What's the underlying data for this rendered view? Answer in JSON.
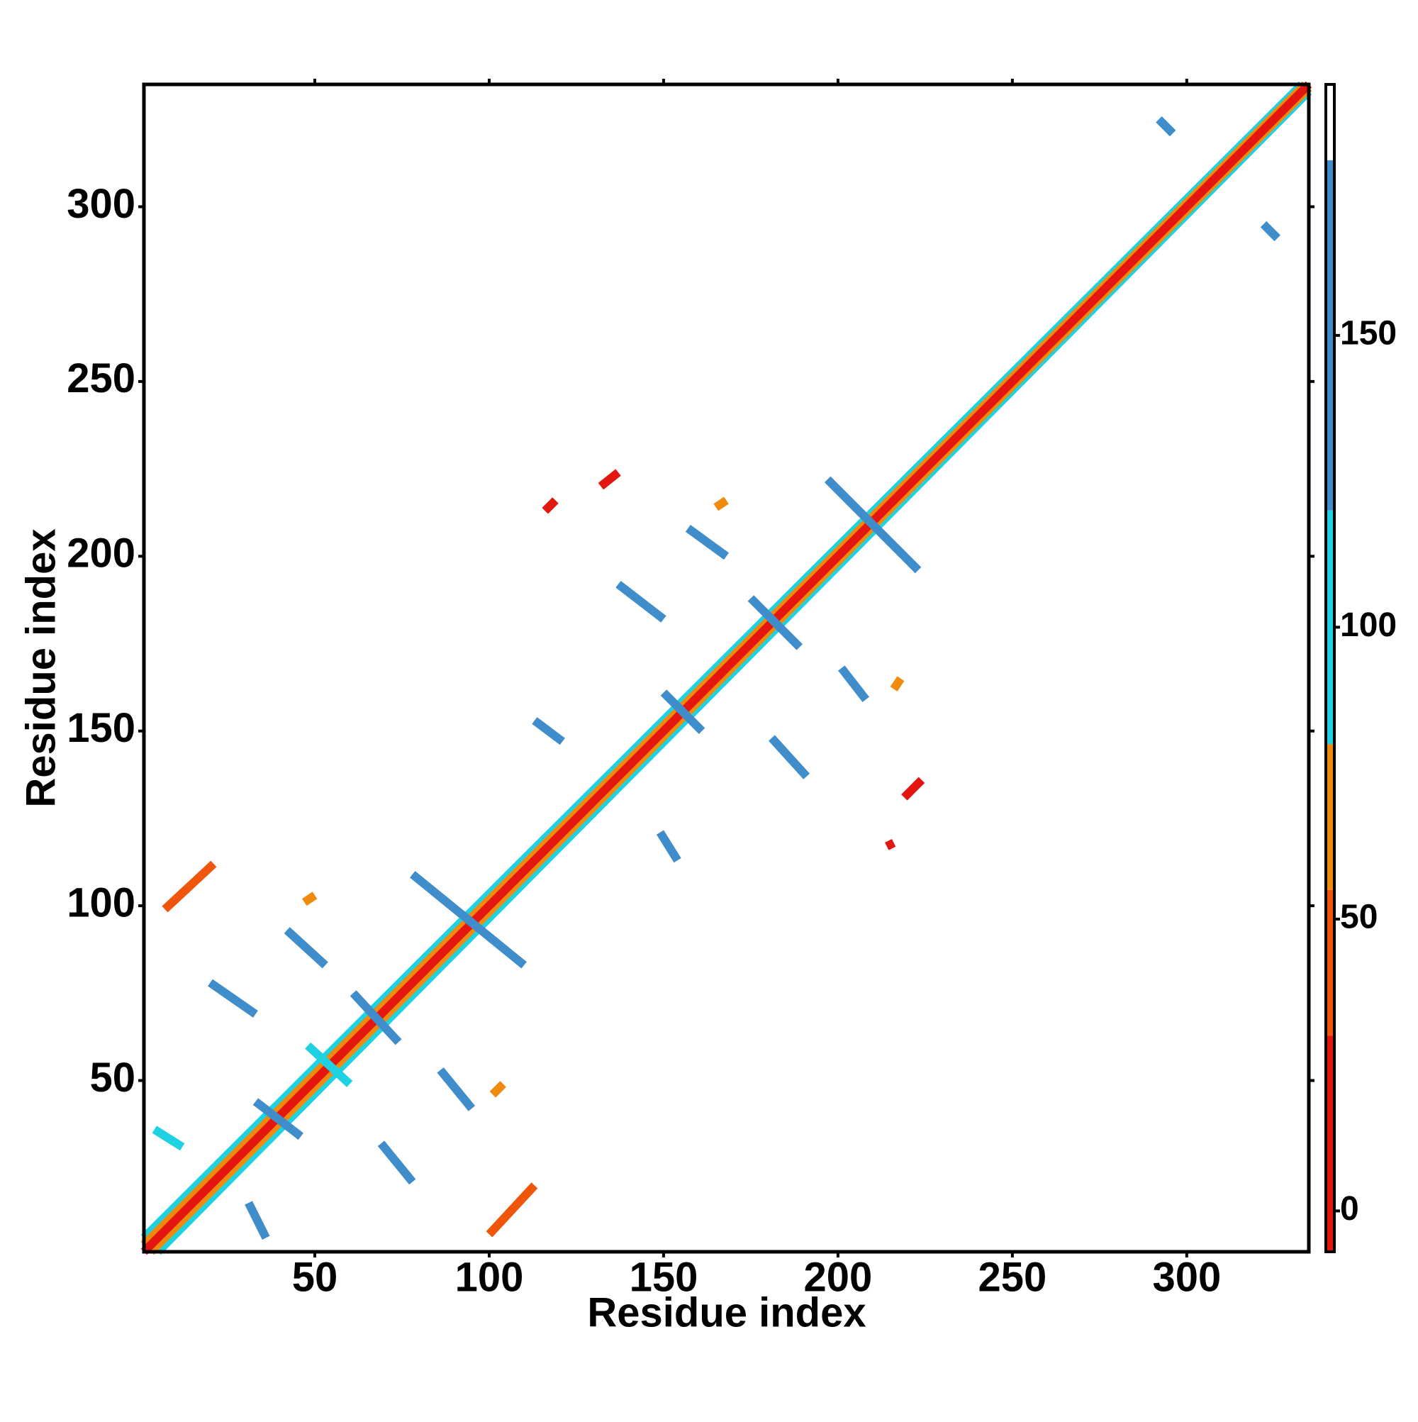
{
  "chart_data": {
    "type": "contact_map",
    "xlabel": "Residue index",
    "ylabel": "Residue index",
    "xlim": [
      1,
      335
    ],
    "ylim": [
      1,
      335
    ],
    "xticks": [
      50,
      100,
      150,
      200,
      250,
      300
    ],
    "yticks": [
      50,
      100,
      150,
      200,
      250,
      300
    ],
    "colorbar": {
      "lim": [
        -7,
        193
      ],
      "ticks": [
        0,
        50,
        100,
        150
      ],
      "bands": [
        {
          "from": -7,
          "to": 30,
          "color": "#e3170f"
        },
        {
          "from": 30,
          "to": 55,
          "color": "#ef560c"
        },
        {
          "from": 55,
          "to": 80,
          "color": "#f08a0c"
        },
        {
          "from": 80,
          "to": 120,
          "color": "#1ed2e2"
        },
        {
          "from": 120,
          "to": 180,
          "color": "#3f8dca"
        },
        {
          "from": 180,
          "to": 193,
          "color": "#ffffff"
        }
      ]
    },
    "segments": [
      {
        "x": [
          1,
          333
        ],
        "y": [
          5,
          335
        ],
        "value": 100
      },
      {
        "x": [
          5,
          335
        ],
        "y": [
          1,
          333
        ],
        "value": 100
      },
      {
        "x": [
          1,
          334
        ],
        "y": [
          3,
          335
        ],
        "value": 65
      },
      {
        "x": [
          3,
          335
        ],
        "y": [
          1,
          334
        ],
        "value": 65
      },
      {
        "x": [
          1,
          335
        ],
        "y": [
          1,
          335
        ],
        "value": 10
      },
      {
        "x": [
          78,
          110
        ],
        "y": [
          109,
          83
        ],
        "value": 160
      },
      {
        "x": [
          197,
          223
        ],
        "y": [
          222,
          196
        ],
        "value": 160
      },
      {
        "x": [
          175,
          189
        ],
        "y": [
          188,
          174
        ],
        "value": 160
      },
      {
        "x": [
          150,
          161
        ],
        "y": [
          161,
          150
        ],
        "value": 160
      },
      {
        "x": [
          48,
          60
        ],
        "y": [
          60,
          49
        ],
        "value": 100
      },
      {
        "x": [
          61,
          74
        ],
        "y": [
          75,
          61
        ],
        "value": 160
      },
      {
        "x": [
          33,
          46
        ],
        "y": [
          44,
          34
        ],
        "value": 160
      },
      {
        "x": [
          7,
          21
        ],
        "y": [
          99,
          112
        ],
        "value": 40
      },
      {
        "x": [
          100,
          113
        ],
        "y": [
          6,
          20
        ],
        "value": 40
      },
      {
        "x": [
          42,
          53
        ],
        "y": [
          93,
          83
        ],
        "value": 160
      },
      {
        "x": [
          86,
          95
        ],
        "y": [
          53,
          42
        ],
        "value": 160
      },
      {
        "x": [
          20,
          33
        ],
        "y": [
          78,
          69
        ],
        "value": 160
      },
      {
        "x": [
          69,
          78
        ],
        "y": [
          32,
          21
        ],
        "value": 160
      },
      {
        "x": [
          4,
          12
        ],
        "y": [
          36,
          31
        ],
        "value": 100
      },
      {
        "x": [
          31,
          36
        ],
        "y": [
          15,
          5
        ],
        "value": 160
      },
      {
        "x": [
          137,
          150
        ],
        "y": [
          192,
          182
        ],
        "value": 160
      },
      {
        "x": [
          181,
          191
        ],
        "y": [
          148,
          137
        ],
        "value": 160
      },
      {
        "x": [
          157,
          168
        ],
        "y": [
          208,
          200
        ],
        "value": 160
      },
      {
        "x": [
          201,
          208
        ],
        "y": [
          168,
          159
        ],
        "value": 160
      },
      {
        "x": [
          113,
          121
        ],
        "y": [
          153,
          147
        ],
        "value": 160
      },
      {
        "x": [
          149,
          154
        ],
        "y": [
          121,
          113
        ],
        "value": 160
      },
      {
        "x": [
          132,
          137
        ],
        "y": [
          220,
          224
        ],
        "value": 20
      },
      {
        "x": [
          219,
          224
        ],
        "y": [
          131,
          136
        ],
        "value": 20
      },
      {
        "x": [
          116,
          119
        ],
        "y": [
          213,
          216
        ],
        "value": 20
      },
      {
        "x": [
          214,
          216
        ],
        "y": [
          117,
          118
        ],
        "value": 20
      },
      {
        "x": [
          292,
          296
        ],
        "y": [
          325,
          321
        ],
        "value": 160
      },
      {
        "x": [
          322,
          326
        ],
        "y": [
          295,
          291
        ],
        "value": 160
      },
      {
        "x": [
          47,
          50
        ],
        "y": [
          101,
          103
        ],
        "value": 65
      },
      {
        "x": [
          101,
          104
        ],
        "y": [
          46,
          49
        ],
        "value": 65
      },
      {
        "x": [
          165,
          168
        ],
        "y": [
          214,
          216
        ],
        "value": 65
      },
      {
        "x": [
          216,
          218
        ],
        "y": [
          162,
          165
        ],
        "value": 65
      }
    ]
  }
}
